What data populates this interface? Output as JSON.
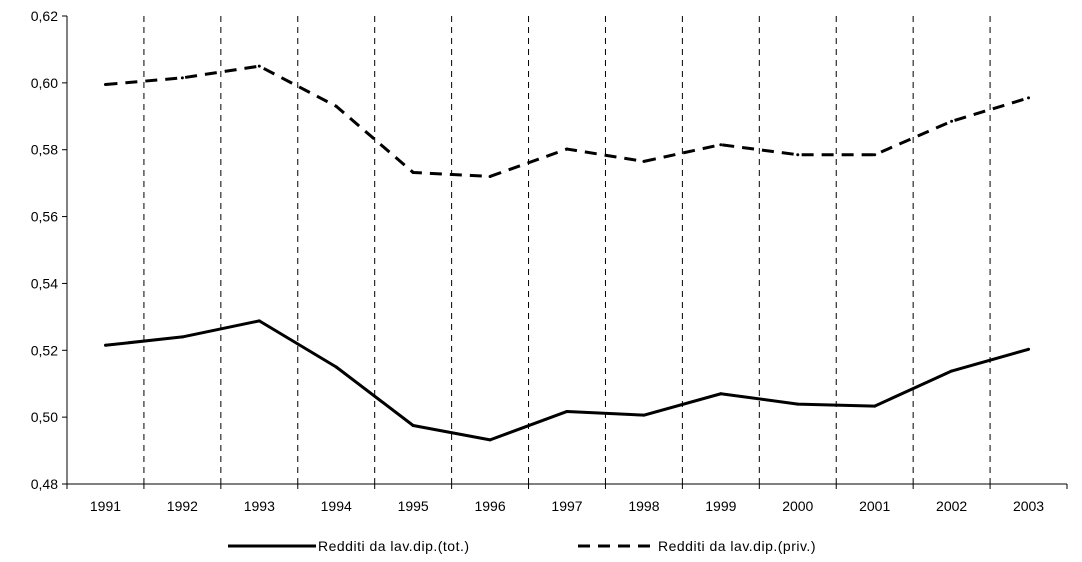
{
  "chart_data": {
    "type": "line",
    "title": "",
    "xlabel": "",
    "ylabel": "",
    "x": [
      "1991",
      "1992",
      "1993",
      "1994",
      "1995",
      "1996",
      "1997",
      "1998",
      "1999",
      "2000",
      "2001",
      "2002",
      "2003"
    ],
    "ylim": [
      0.48,
      0.62
    ],
    "yticks": [
      0.48,
      0.5,
      0.52,
      0.54,
      0.56,
      0.58,
      0.6,
      0.62
    ],
    "ytick_labels": [
      "0,48",
      "0,50",
      "0,52",
      "0,54",
      "0,56",
      "0,58",
      "0,60",
      "0,62"
    ],
    "grid": "vertical dashed lines between categories",
    "legend_position": "bottom-center",
    "series": [
      {
        "name": "Redditi da lav.dip.(tot.)",
        "style": "solid",
        "color": "#000000",
        "values": [
          0.5215,
          0.524,
          0.5288,
          0.515,
          0.4975,
          0.4932,
          0.5017,
          0.5006,
          0.507,
          0.5039,
          0.5033,
          0.5138,
          0.5203
        ]
      },
      {
        "name": "Redditi da lav.dip.(priv.)",
        "style": "dashed",
        "color": "#000000",
        "values": [
          0.5995,
          0.6015,
          0.605,
          0.593,
          0.5732,
          0.572,
          0.5802,
          0.5765,
          0.5815,
          0.5785,
          0.5785,
          0.5885,
          0.5955
        ]
      }
    ]
  }
}
